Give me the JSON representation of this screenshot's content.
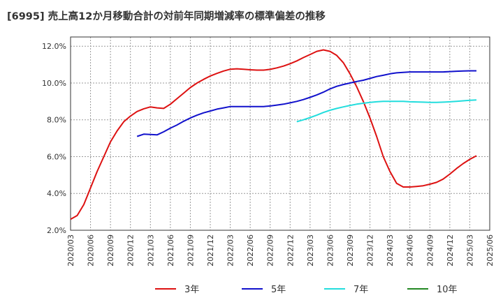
{
  "chart_data": {
    "type": "line",
    "title": "[6995]  売上高12か月移動合計の対前年同期増減率の標準偏差の推移",
    "xlabel": "",
    "ylabel": "",
    "ylim": [
      2.0,
      12.5
    ],
    "y_ticks": [
      "2.0%",
      "4.0%",
      "6.0%",
      "8.0%",
      "10.0%",
      "12.0%"
    ],
    "y_tick_values": [
      2,
      4,
      6,
      8,
      10,
      12
    ],
    "x_ticks": [
      "2020/03",
      "2020/06",
      "2020/09",
      "2020/12",
      "2021/03",
      "2021/06",
      "2021/09",
      "2021/12",
      "2022/03",
      "2022/06",
      "2022/09",
      "2022/12",
      "2023/03",
      "2023/06",
      "2023/09",
      "2023/12",
      "2024/03",
      "2024/06",
      "2024/09",
      "2024/12",
      "2025/03",
      "2025/06"
    ],
    "x_start": "2020/03",
    "grid": true,
    "legend_position": "bottom",
    "series": [
      {
        "name": "3年",
        "color": "#dd1111",
        "points": [
          [
            "2020/03",
            2.6
          ],
          [
            "2020/04",
            2.8
          ],
          [
            "2020/05",
            3.4
          ],
          [
            "2020/06",
            4.3
          ],
          [
            "2020/07",
            5.2
          ],
          [
            "2020/08",
            6.0
          ],
          [
            "2020/09",
            6.8
          ],
          [
            "2020/10",
            7.4
          ],
          [
            "2020/11",
            7.9
          ],
          [
            "2020/12",
            8.2
          ],
          [
            "2021/01",
            8.45
          ],
          [
            "2021/02",
            8.6
          ],
          [
            "2021/03",
            8.7
          ],
          [
            "2021/04",
            8.65
          ],
          [
            "2021/05",
            8.62
          ],
          [
            "2021/06",
            8.85
          ],
          [
            "2021/07",
            9.15
          ],
          [
            "2021/08",
            9.45
          ],
          [
            "2021/09",
            9.75
          ],
          [
            "2021/10",
            10.0
          ],
          [
            "2021/11",
            10.2
          ],
          [
            "2021/12",
            10.38
          ],
          [
            "2022/01",
            10.52
          ],
          [
            "2022/02",
            10.65
          ],
          [
            "2022/03",
            10.75
          ],
          [
            "2022/04",
            10.77
          ],
          [
            "2022/05",
            10.75
          ],
          [
            "2022/06",
            10.72
          ],
          [
            "2022/07",
            10.7
          ],
          [
            "2022/08",
            10.7
          ],
          [
            "2022/09",
            10.74
          ],
          [
            "2022/10",
            10.82
          ],
          [
            "2022/11",
            10.92
          ],
          [
            "2022/12",
            11.05
          ],
          [
            "2023/01",
            11.2
          ],
          [
            "2023/02",
            11.38
          ],
          [
            "2023/03",
            11.55
          ],
          [
            "2023/04",
            11.72
          ],
          [
            "2023/05",
            11.8
          ],
          [
            "2023/06",
            11.72
          ],
          [
            "2023/07",
            11.5
          ],
          [
            "2023/08",
            11.1
          ],
          [
            "2023/09",
            10.5
          ],
          [
            "2023/10",
            9.8
          ],
          [
            "2023/11",
            9.0
          ],
          [
            "2023/12",
            8.1
          ],
          [
            "2024/01",
            7.1
          ],
          [
            "2024/02",
            6.0
          ],
          [
            "2024/03",
            5.2
          ],
          [
            "2024/04",
            4.55
          ],
          [
            "2024/05",
            4.35
          ],
          [
            "2024/06",
            4.35
          ],
          [
            "2024/07",
            4.38
          ],
          [
            "2024/08",
            4.42
          ],
          [
            "2024/09",
            4.5
          ],
          [
            "2024/10",
            4.6
          ],
          [
            "2024/11",
            4.78
          ],
          [
            "2024/12",
            5.05
          ],
          [
            "2025/01",
            5.35
          ],
          [
            "2025/02",
            5.62
          ],
          [
            "2025/03",
            5.85
          ],
          [
            "2025/04",
            6.05
          ]
        ]
      },
      {
        "name": "5年",
        "color": "#1111cc",
        "points": [
          [
            "2021/01",
            7.1
          ],
          [
            "2021/02",
            7.22
          ],
          [
            "2021/03",
            7.2
          ],
          [
            "2021/04",
            7.18
          ],
          [
            "2021/05",
            7.35
          ],
          [
            "2021/06",
            7.55
          ],
          [
            "2021/07",
            7.72
          ],
          [
            "2021/08",
            7.92
          ],
          [
            "2021/09",
            8.1
          ],
          [
            "2021/10",
            8.25
          ],
          [
            "2021/11",
            8.38
          ],
          [
            "2021/12",
            8.48
          ],
          [
            "2022/01",
            8.58
          ],
          [
            "2022/02",
            8.65
          ],
          [
            "2022/03",
            8.72
          ],
          [
            "2022/04",
            8.72
          ],
          [
            "2022/05",
            8.72
          ],
          [
            "2022/06",
            8.72
          ],
          [
            "2022/07",
            8.72
          ],
          [
            "2022/08",
            8.72
          ],
          [
            "2022/09",
            8.75
          ],
          [
            "2022/10",
            8.8
          ],
          [
            "2022/11",
            8.85
          ],
          [
            "2022/12",
            8.92
          ],
          [
            "2023/01",
            9.0
          ],
          [
            "2023/02",
            9.1
          ],
          [
            "2023/03",
            9.22
          ],
          [
            "2023/04",
            9.35
          ],
          [
            "2023/05",
            9.5
          ],
          [
            "2023/06",
            9.68
          ],
          [
            "2023/07",
            9.82
          ],
          [
            "2023/08",
            9.92
          ],
          [
            "2023/09",
            10.0
          ],
          [
            "2023/10",
            10.08
          ],
          [
            "2023/11",
            10.15
          ],
          [
            "2023/12",
            10.25
          ],
          [
            "2024/01",
            10.35
          ],
          [
            "2024/02",
            10.42
          ],
          [
            "2024/03",
            10.5
          ],
          [
            "2024/04",
            10.55
          ],
          [
            "2024/05",
            10.58
          ],
          [
            "2024/06",
            10.6
          ],
          [
            "2024/07",
            10.6
          ],
          [
            "2024/08",
            10.6
          ],
          [
            "2024/09",
            10.6
          ],
          [
            "2024/10",
            10.6
          ],
          [
            "2024/11",
            10.6
          ],
          [
            "2024/12",
            10.62
          ],
          [
            "2025/01",
            10.64
          ],
          [
            "2025/02",
            10.65
          ],
          [
            "2025/03",
            10.66
          ],
          [
            "2025/04",
            10.66
          ]
        ]
      },
      {
        "name": "7年",
        "color": "#22dddd",
        "points": [
          [
            "2023/01",
            7.9
          ],
          [
            "2023/02",
            8.0
          ],
          [
            "2023/03",
            8.12
          ],
          [
            "2023/04",
            8.25
          ],
          [
            "2023/05",
            8.4
          ],
          [
            "2023/06",
            8.52
          ],
          [
            "2023/07",
            8.62
          ],
          [
            "2023/08",
            8.7
          ],
          [
            "2023/09",
            8.78
          ],
          [
            "2023/10",
            8.85
          ],
          [
            "2023/11",
            8.9
          ],
          [
            "2023/12",
            8.95
          ],
          [
            "2024/01",
            8.98
          ],
          [
            "2024/02",
            9.0
          ],
          [
            "2024/03",
            9.0
          ],
          [
            "2024/04",
            9.0
          ],
          [
            "2024/05",
            9.0
          ],
          [
            "2024/06",
            8.98
          ],
          [
            "2024/07",
            8.97
          ],
          [
            "2024/08",
            8.96
          ],
          [
            "2024/09",
            8.95
          ],
          [
            "2024/10",
            8.95
          ],
          [
            "2024/11",
            8.96
          ],
          [
            "2024/12",
            8.98
          ],
          [
            "2025/01",
            9.0
          ],
          [
            "2025/02",
            9.03
          ],
          [
            "2025/03",
            9.06
          ],
          [
            "2025/04",
            9.08
          ]
        ]
      },
      {
        "name": "10年",
        "color": "#228822",
        "points": []
      }
    ]
  }
}
